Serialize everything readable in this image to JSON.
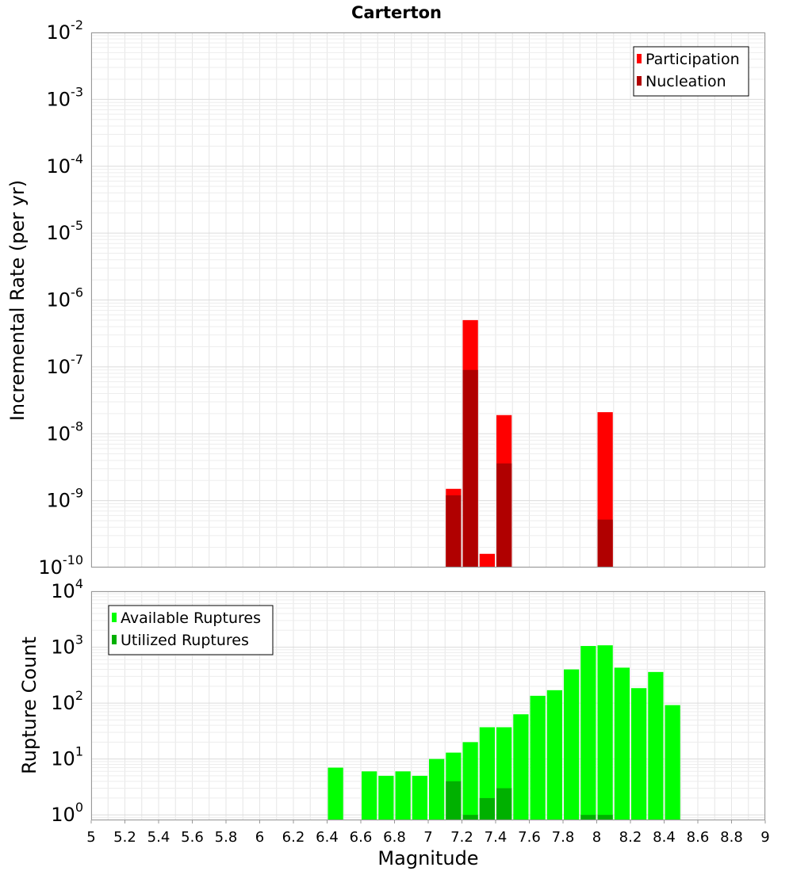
{
  "chart_data": [
    {
      "type": "bar",
      "title": "Carterton",
      "ylabel": "Incremental Rate (per yr)",
      "xlabel": "",
      "yscale": "log",
      "ylim": [
        1e-10,
        0.01
      ],
      "xlim": [
        5,
        9
      ],
      "grid": true,
      "legend_position": "top-right",
      "y_tick_labels": [
        {
          "base": "10",
          "exp": "-10"
        },
        {
          "base": "10",
          "exp": "-9"
        },
        {
          "base": "10",
          "exp": "-8"
        },
        {
          "base": "10",
          "exp": "-7"
        },
        {
          "base": "10",
          "exp": "-6"
        },
        {
          "base": "10",
          "exp": "-5"
        },
        {
          "base": "10",
          "exp": "-4"
        },
        {
          "base": "10",
          "exp": "-3"
        },
        {
          "base": "10",
          "exp": "-2"
        }
      ],
      "series": [
        {
          "name": "Participation",
          "color": "#ff0000",
          "points": [
            {
              "x": 7.15,
              "y": 1.5e-09
            },
            {
              "x": 7.25,
              "y": 5e-07
            },
            {
              "x": 7.35,
              "y": 1.6e-10
            },
            {
              "x": 7.45,
              "y": 1.9e-08
            },
            {
              "x": 8.05,
              "y": 2.1e-08
            }
          ]
        },
        {
          "name": "Nucleation",
          "color": "#b00000",
          "points": [
            {
              "x": 7.15,
              "y": 1.2e-09
            },
            {
              "x": 7.25,
              "y": 9e-08
            },
            {
              "x": 7.45,
              "y": 3.6e-09
            },
            {
              "x": 8.05,
              "y": 5.2e-10
            }
          ]
        }
      ]
    },
    {
      "type": "bar",
      "title": "",
      "ylabel": "Rupture Count",
      "xlabel": "Magnitude",
      "yscale": "log",
      "ylim": [
        0.8,
        10000
      ],
      "xlim": [
        5,
        9
      ],
      "grid": true,
      "legend_position": "top-left",
      "x_ticks": [
        "5",
        "5.2",
        "5.4",
        "5.6",
        "5.8",
        "6",
        "6.2",
        "6.4",
        "6.6",
        "6.8",
        "7",
        "7.2",
        "7.4",
        "7.6",
        "7.8",
        "8",
        "8.2",
        "8.4",
        "8.6",
        "8.8",
        "9"
      ],
      "y_tick_labels": [
        {
          "base": "10",
          "exp": "0"
        },
        {
          "base": "10",
          "exp": "1"
        },
        {
          "base": "10",
          "exp": "2"
        },
        {
          "base": "10",
          "exp": "3"
        },
        {
          "base": "10",
          "exp": "4"
        }
      ],
      "series": [
        {
          "name": "Available Ruptures",
          "color": "#00ff00",
          "points": [
            {
              "x": 6.45,
              "y": 7
            },
            {
              "x": 6.65,
              "y": 6
            },
            {
              "x": 6.75,
              "y": 5
            },
            {
              "x": 6.85,
              "y": 6
            },
            {
              "x": 6.95,
              "y": 5
            },
            {
              "x": 7.05,
              "y": 10
            },
            {
              "x": 7.15,
              "y": 13
            },
            {
              "x": 7.25,
              "y": 20
            },
            {
              "x": 7.35,
              "y": 37
            },
            {
              "x": 7.45,
              "y": 37
            },
            {
              "x": 7.55,
              "y": 63
            },
            {
              "x": 7.65,
              "y": 135
            },
            {
              "x": 7.75,
              "y": 170
            },
            {
              "x": 7.85,
              "y": 400
            },
            {
              "x": 7.95,
              "y": 1050
            },
            {
              "x": 8.05,
              "y": 1080
            },
            {
              "x": 8.15,
              "y": 430
            },
            {
              "x": 8.25,
              "y": 185
            },
            {
              "x": 8.35,
              "y": 360
            },
            {
              "x": 8.45,
              "y": 92
            }
          ]
        },
        {
          "name": "Utilized Ruptures",
          "color": "#00b000",
          "points": [
            {
              "x": 7.15,
              "y": 4
            },
            {
              "x": 7.25,
              "y": 1
            },
            {
              "x": 7.35,
              "y": 2
            },
            {
              "x": 7.45,
              "y": 3
            },
            {
              "x": 7.95,
              "y": 1
            },
            {
              "x": 8.05,
              "y": 1
            }
          ]
        }
      ]
    }
  ]
}
